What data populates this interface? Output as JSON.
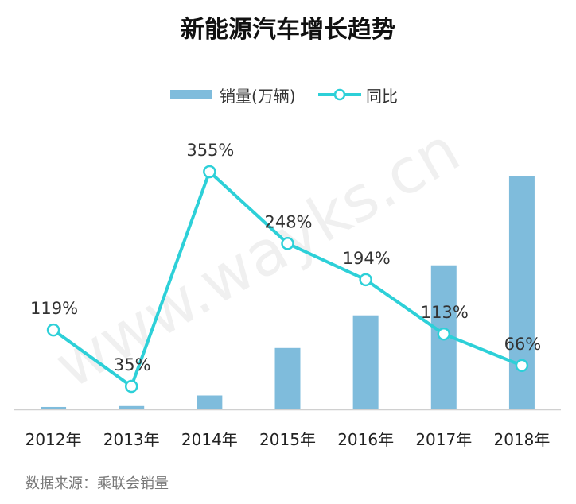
{
  "chart_data": {
    "type": "bar",
    "title": "新能源汽车增长趋势",
    "categories": [
      "2012年",
      "2013年",
      "2014年",
      "2015年",
      "2016年",
      "2017年",
      "2018年"
    ],
    "series": [
      {
        "name": "销量(万辆)",
        "type": "bar",
        "color": "#7fbcdc",
        "values": [
          1.3,
          1.8,
          7.5,
          33.1,
          50.7,
          77.7,
          125.6
        ]
      },
      {
        "name": "同比",
        "type": "line",
        "color": "#2dd0d8",
        "values": [
          119,
          35,
          355,
          248,
          194,
          113,
          66
        ],
        "labels": [
          "119%",
          "35%",
          "355%",
          "248%",
          "194%",
          "113%",
          "66%"
        ]
      }
    ],
    "legend": "top-center",
    "grid": false
  },
  "source_note": "数据来源：乘联会销量",
  "watermark": "www.wayks.cn"
}
